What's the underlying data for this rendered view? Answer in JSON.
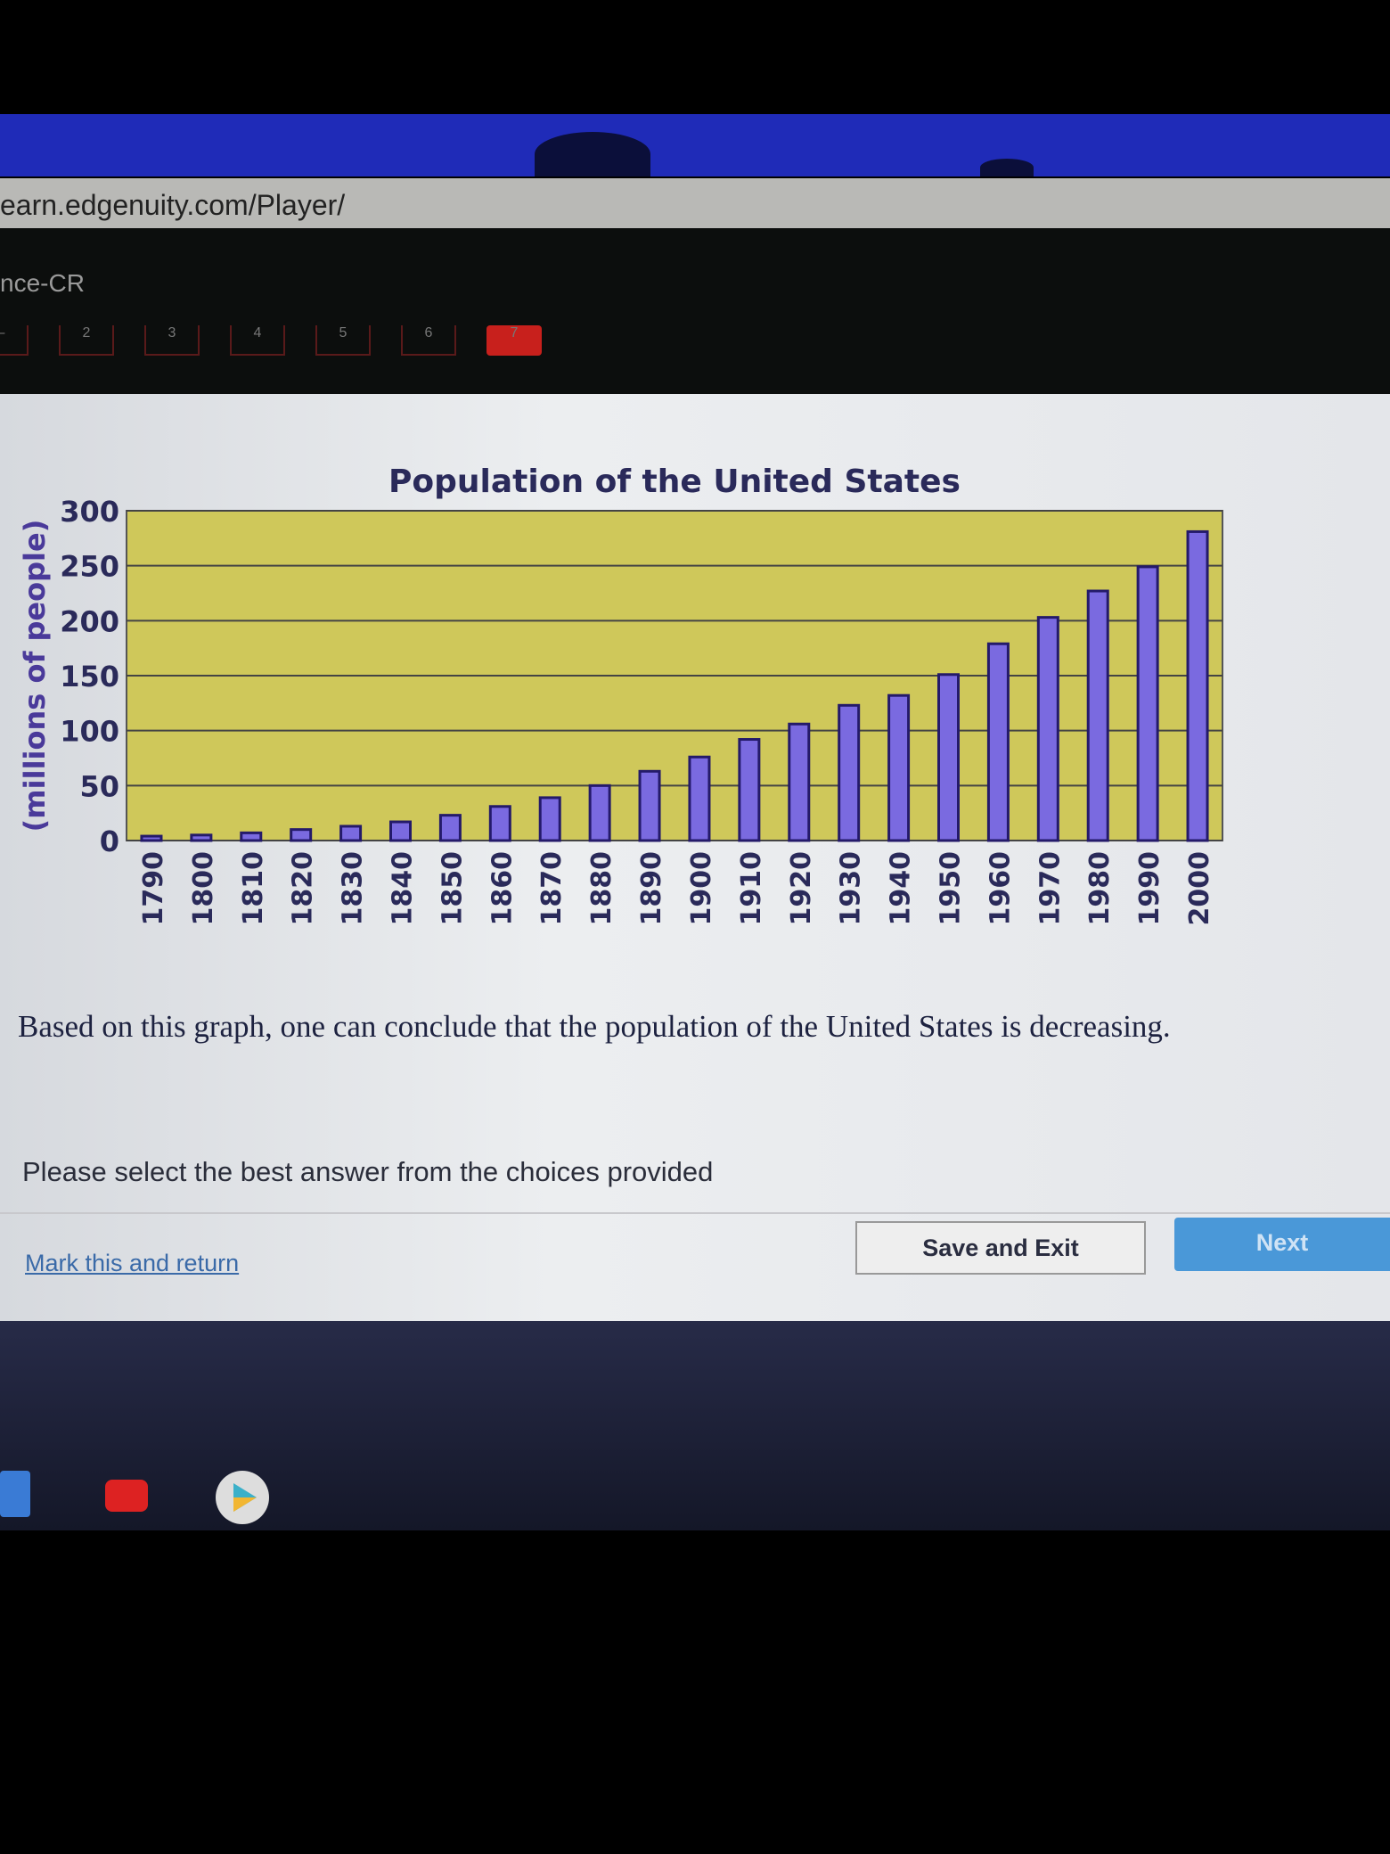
{
  "browser": {
    "url": "earn.edgenuity.com/Player/",
    "breadcrumb": "nce-CR"
  },
  "tabs": [
    "–",
    "2",
    "3",
    "4",
    "5",
    "6",
    "7"
  ],
  "chart_data": {
    "type": "bar",
    "title": "Population of the United States",
    "ylabel": "(millions of people)",
    "xlabel": "",
    "ylim": [
      0,
      300
    ],
    "yticks": [
      0,
      50,
      100,
      150,
      200,
      250,
      300
    ],
    "grid": true,
    "categories": [
      "1790",
      "1800",
      "1810",
      "1820",
      "1830",
      "1840",
      "1850",
      "1860",
      "1870",
      "1880",
      "1890",
      "1900",
      "1910",
      "1920",
      "1930",
      "1940",
      "1950",
      "1960",
      "1970",
      "1980",
      "1990",
      "2000"
    ],
    "values": [
      4,
      5,
      7,
      10,
      13,
      17,
      23,
      31,
      39,
      50,
      63,
      76,
      92,
      106,
      123,
      132,
      151,
      179,
      203,
      227,
      249,
      281
    ],
    "colors": {
      "plot_bg": "#cfc85a",
      "bar": "#7a6ae0",
      "bar_edge": "#241a6a"
    }
  },
  "question": {
    "statement": "Based on this graph, one can conclude that the population of the United States is decreasing.",
    "prompt": "Please select the best answer from the choices provided"
  },
  "actions": {
    "mark": "Mark this and return",
    "save": "Save and Exit",
    "next": "Next"
  },
  "shelf": [
    "docs-icon",
    "youtube-icon",
    "play-store-icon"
  ]
}
